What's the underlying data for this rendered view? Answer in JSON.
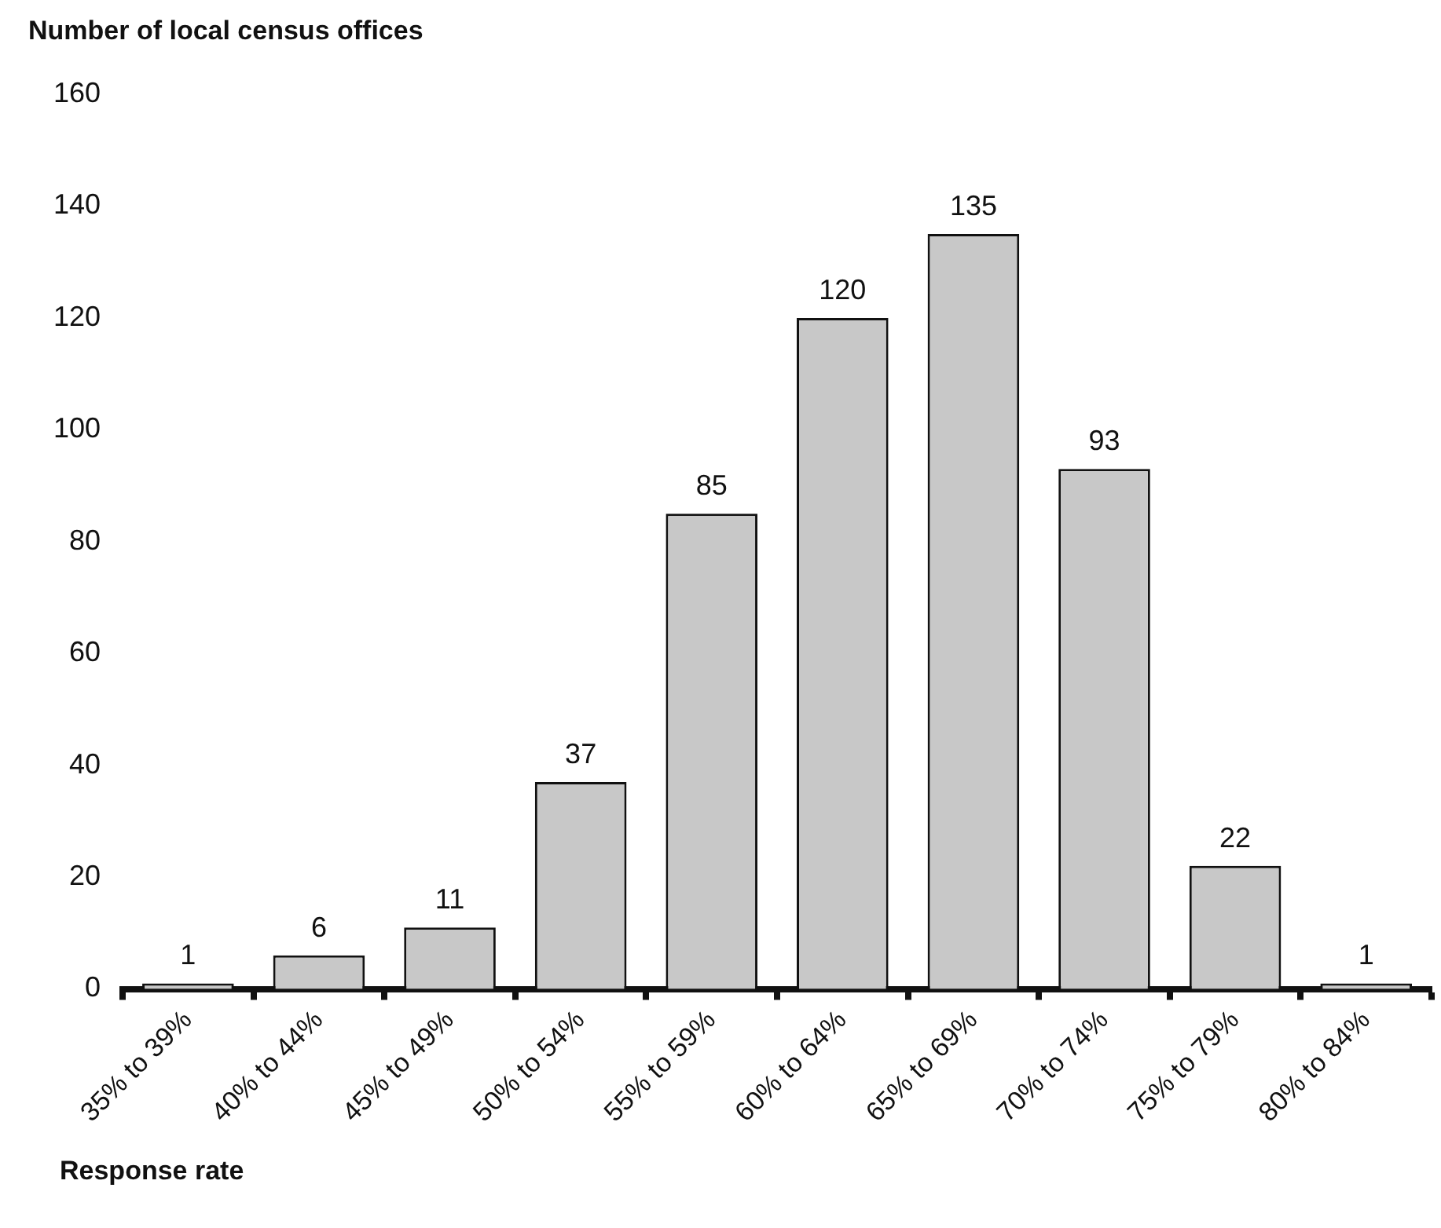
{
  "chart_data": {
    "type": "bar",
    "ylabel": "Number of local census offices",
    "xlabel": "Response rate",
    "categories": [
      "35% to 39%",
      "40% to 44%",
      "45% to 49%",
      "50% to 54%",
      "55% to 59%",
      "60% to 64%",
      "65% to 69%",
      "70% to 74%",
      "75% to 79%",
      "80% to 84%"
    ],
    "values": [
      1,
      6,
      11,
      37,
      85,
      120,
      135,
      93,
      22,
      1
    ],
    "color": "#c8c8c8",
    "ylim": [
      0,
      160
    ],
    "yticks": [
      0,
      20,
      40,
      60,
      80,
      100,
      120,
      140,
      160
    ],
    "data_labels": true,
    "grid": false,
    "legend": false
  }
}
